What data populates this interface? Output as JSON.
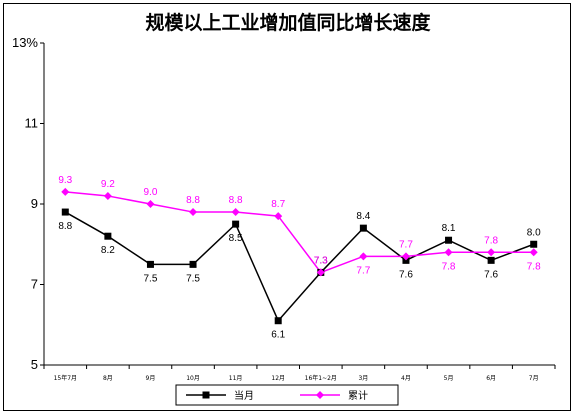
{
  "chart_data": {
    "type": "line",
    "title": "规模以上工业增加值同比增长速度",
    "y_tick_labels": [
      "13%",
      "11",
      "9",
      "7",
      "5"
    ],
    "y_ticks": [
      13,
      11,
      9,
      7,
      5
    ],
    "ylim": [
      5,
      13
    ],
    "categories": [
      "15年7月",
      "8月",
      "9月",
      "10月",
      "11月",
      "12月",
      "16年1~2月",
      "3月",
      "4月",
      "5月",
      "6月",
      "7月"
    ],
    "grid": false,
    "legend_position": "bottom",
    "series": [
      {
        "name": "当月",
        "color": "#000000",
        "marker": "square",
        "values": [
          8.8,
          8.2,
          7.5,
          7.5,
          8.5,
          6.1,
          7.3,
          8.4,
          7.6,
          8.1,
          7.6,
          8.0
        ],
        "labels": [
          "8.8",
          "8.2",
          "7.5",
          "7.5",
          "8.5",
          "6.1",
          "7.3",
          "8.4",
          "7.6",
          "8.1",
          "7.6",
          "8.0"
        ]
      },
      {
        "name": "累计",
        "color": "#FF00FF",
        "marker": "diamond",
        "values": [
          9.3,
          9.2,
          9.0,
          8.8,
          8.8,
          8.7,
          7.3,
          7.7,
          7.7,
          7.8,
          7.8,
          7.8
        ],
        "labels": [
          "9.3",
          "9.2",
          "9.0",
          "8.8",
          "8.8",
          "8.7",
          "7.3",
          "7.7",
          "7.7",
          "7.8",
          "7.8",
          "7.8"
        ]
      }
    ]
  }
}
